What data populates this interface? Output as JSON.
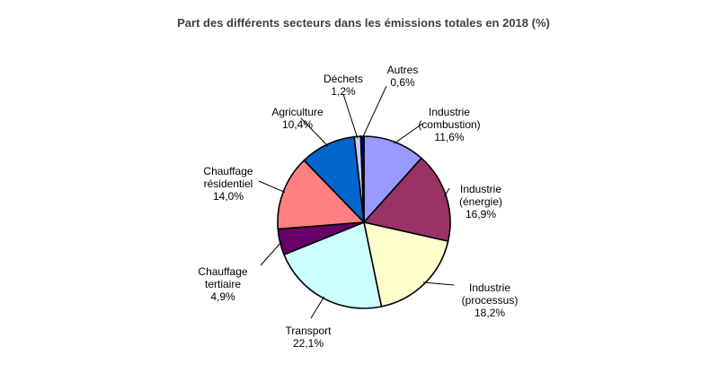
{
  "chart_data": {
    "type": "pie",
    "title": "Part des différents secteurs dans les émissions totales en 2018 (%)",
    "slices": [
      {
        "name": "Industrie (combustion)",
        "label_lines": [
          "Industrie",
          "(combustion)"
        ],
        "value": 11.6,
        "value_label": "11,6%",
        "color": "#9999ff"
      },
      {
        "name": "Industrie (énergie)",
        "label_lines": [
          "Industrie",
          "(énergie)"
        ],
        "value": 16.9,
        "value_label": "16,9%",
        "color": "#993366"
      },
      {
        "name": "Industrie (processus)",
        "label_lines": [
          "Industrie",
          "(processus)"
        ],
        "value": 18.2,
        "value_label": "18,2%",
        "color": "#ffffcc"
      },
      {
        "name": "Transport",
        "label_lines": [
          "Transport"
        ],
        "value": 22.1,
        "value_label": "22,1%",
        "color": "#ccffff"
      },
      {
        "name": "Chauffage tertiaire",
        "label_lines": [
          "Chauffage",
          "tertiaire"
        ],
        "value": 4.9,
        "value_label": "4,9%",
        "color": "#660066"
      },
      {
        "name": "Chauffage résidentiel",
        "label_lines": [
          "Chauffage",
          "résidentiel"
        ],
        "value": 14.0,
        "value_label": "14,0%",
        "color": "#ff8080"
      },
      {
        "name": "Agriculture",
        "label_lines": [
          "Agriculture"
        ],
        "value": 10.4,
        "value_label": "10,4%",
        "color": "#0066cc"
      },
      {
        "name": "Déchets",
        "label_lines": [
          "Déchets"
        ],
        "value": 1.2,
        "value_label": "1,2%",
        "color": "#ccccff"
      },
      {
        "name": "Autres",
        "label_lines": [
          "Autres"
        ],
        "value": 0.6,
        "value_label": "0,6%",
        "color": "#000080"
      }
    ],
    "start_angle_deg": 0,
    "direction": "clockwise",
    "legend": "none"
  }
}
